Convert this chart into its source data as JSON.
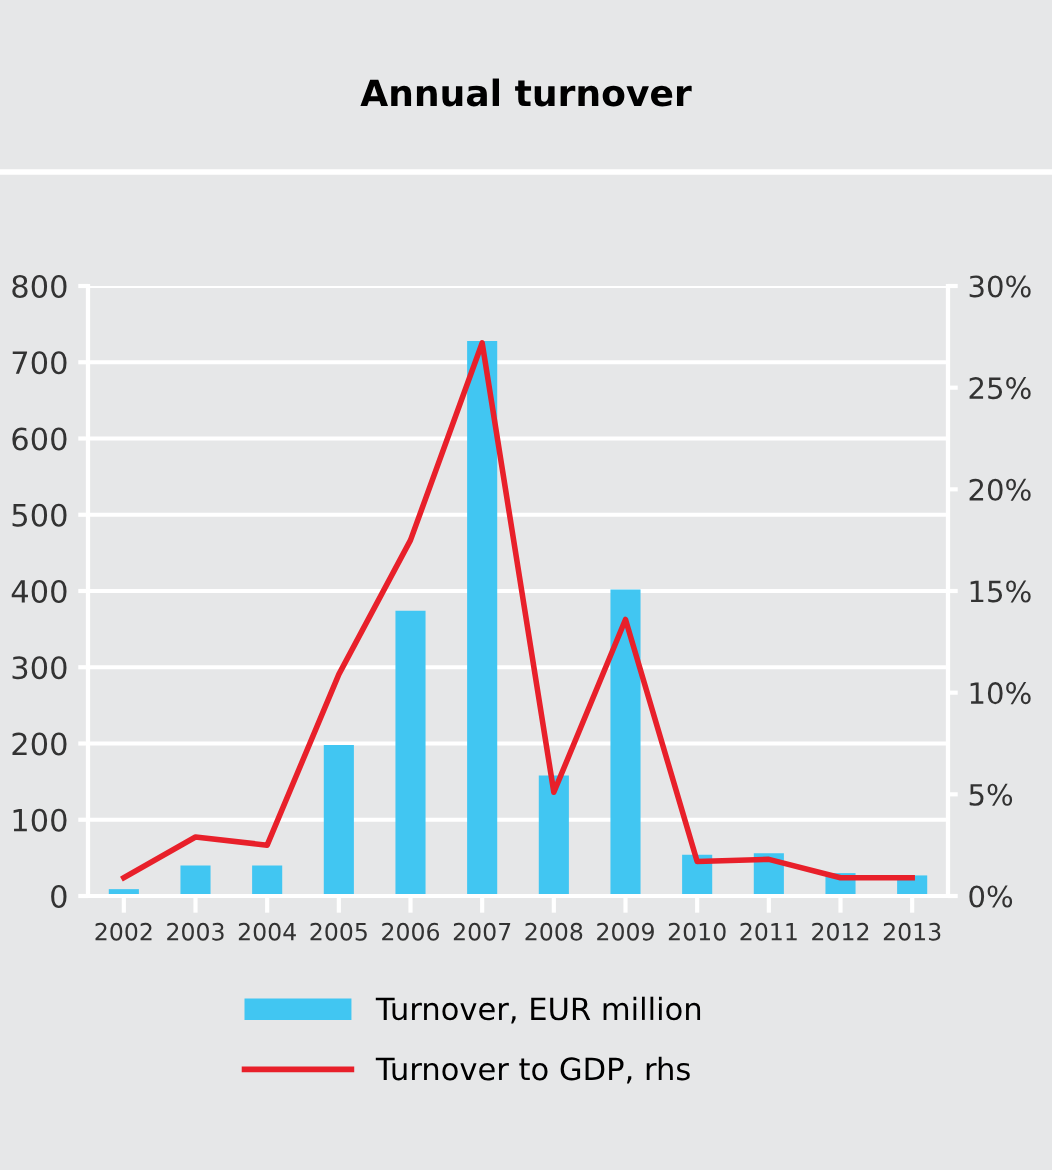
{
  "chart_data": {
    "type": "bar",
    "title": "Annual turnover",
    "categories": [
      "2002",
      "2003",
      "2004",
      "2005",
      "2006",
      "2007",
      "2008",
      "2009",
      "2010",
      "2011",
      "2012",
      "2013"
    ],
    "series": [
      {
        "name": "Turnover, EUR million",
        "color": "#41c6f2",
        "values": [
          9,
          40,
          40,
          198,
          374,
          728,
          158,
          402,
          54,
          56,
          30,
          27
        ]
      },
      {
        "name": "Turnover to GDP, rhs",
        "type": "line",
        "axis": "y2",
        "color": "#e8202a",
        "values": [
          0.9,
          2.9,
          2.5,
          10.9,
          17.5,
          27.2,
          5.1,
          13.6,
          1.7,
          1.8,
          0.9,
          0.9
        ]
      }
    ],
    "ylim": [
      0,
      800
    ],
    "yticks": [
      0,
      100,
      200,
      300,
      400,
      500,
      600,
      700,
      800
    ],
    "y2lim": [
      0,
      30
    ],
    "y2ticks": [
      {
        "value": 0,
        "label": "0%"
      },
      {
        "value": 5,
        "label": "5%"
      },
      {
        "value": 10,
        "label": "10%"
      },
      {
        "value": 15,
        "label": "15%"
      },
      {
        "value": 20,
        "label": "20%"
      },
      {
        "value": 25,
        "label": "25%"
      },
      {
        "value": 30,
        "label": "30%"
      }
    ],
    "grid": "y",
    "legend": "bottom"
  }
}
